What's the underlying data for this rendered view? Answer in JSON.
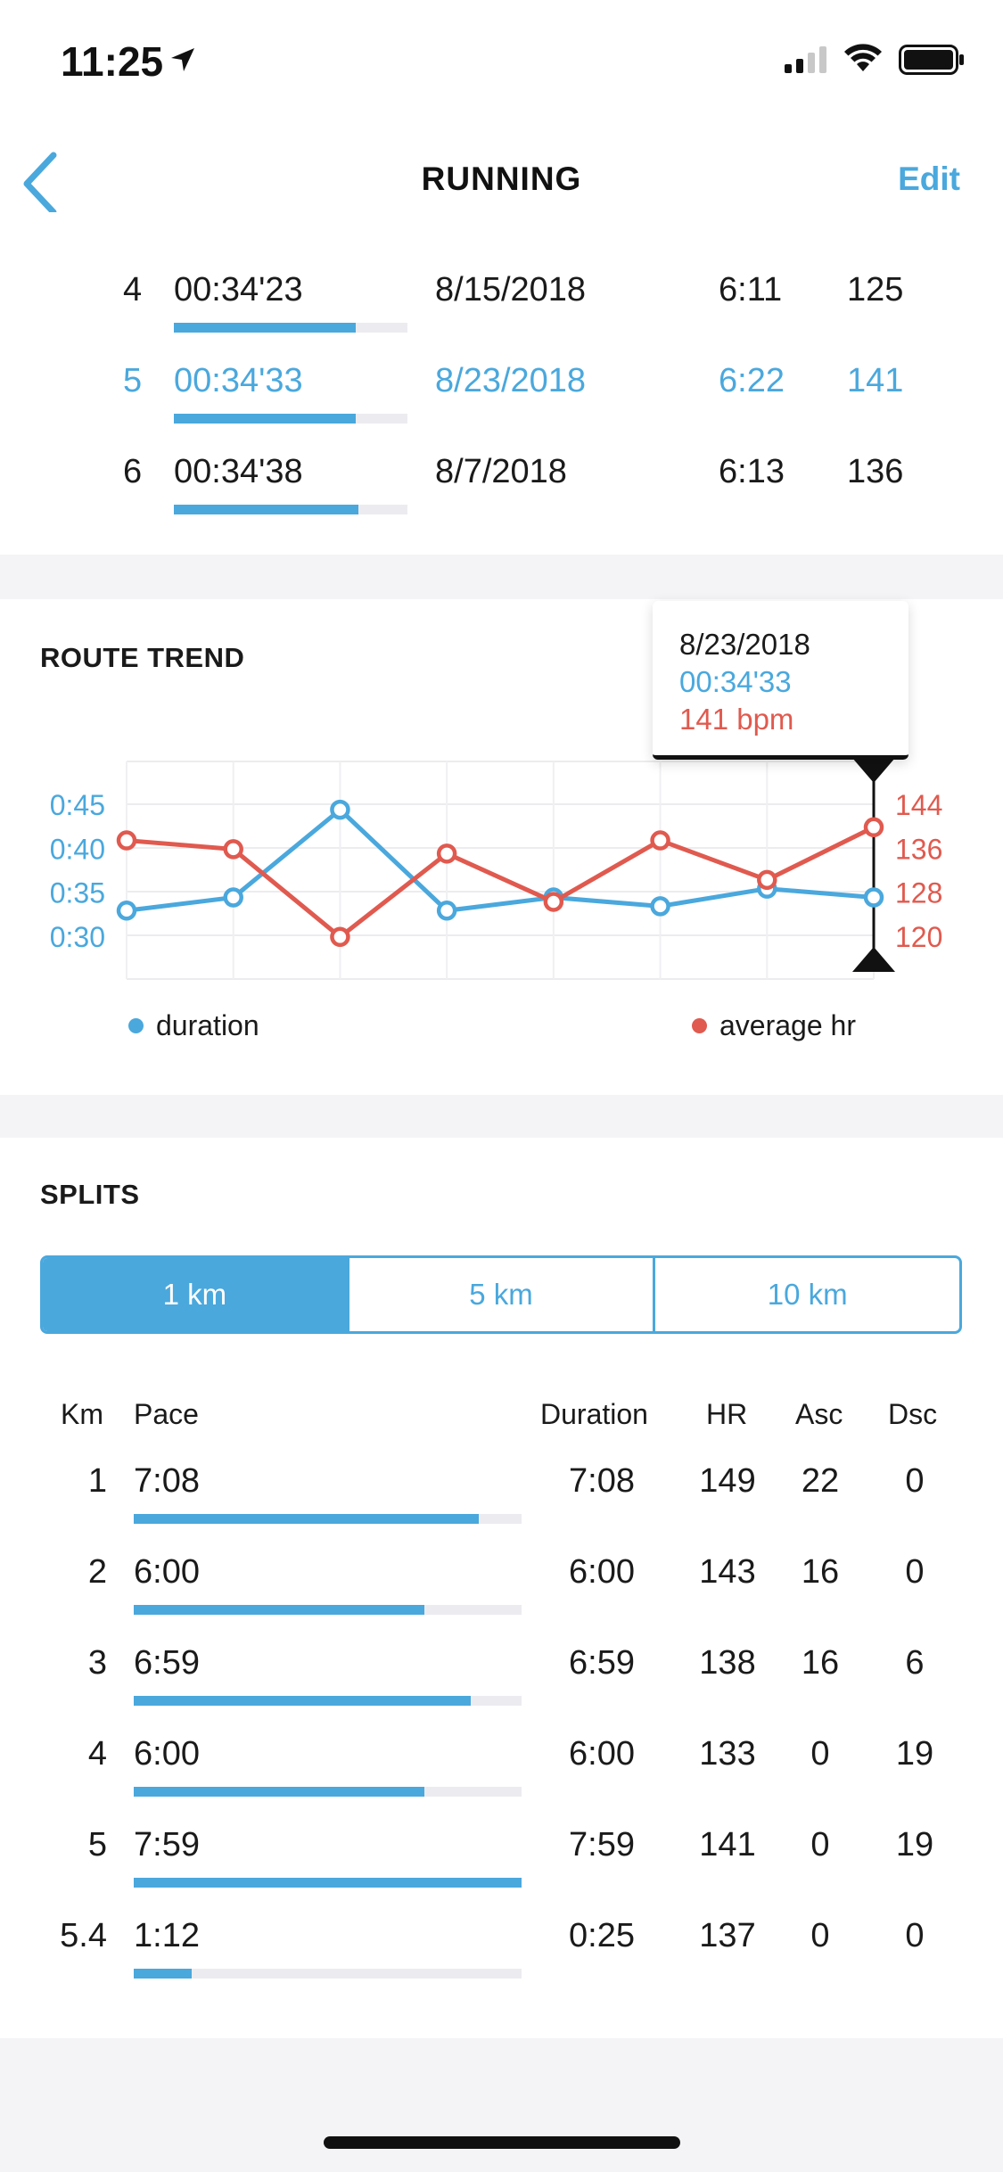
{
  "status": {
    "time": "11:25"
  },
  "nav": {
    "title": "RUNNING",
    "edit_label": "Edit"
  },
  "rankings": [
    {
      "rank": "4",
      "duration": "00:34'23",
      "fill": 0.78,
      "date": "8/15/2018",
      "pace": "6:11",
      "hr": "125",
      "highlight": false
    },
    {
      "rank": "5",
      "duration": "00:34'33",
      "fill": 0.78,
      "date": "8/23/2018",
      "pace": "6:22",
      "hr": "141",
      "highlight": true
    },
    {
      "rank": "6",
      "duration": "00:34'38",
      "fill": 0.79,
      "date": "8/7/2018",
      "pace": "6:13",
      "hr": "136",
      "highlight": false
    }
  ],
  "route_trend": {
    "title": "ROUTE TREND",
    "tooltip": {
      "date": "8/23/2018",
      "duration": "00:34'33",
      "hr": "141 bpm"
    },
    "legend": {
      "duration": "duration",
      "hr": "average hr"
    }
  },
  "chart_data": {
    "type": "line",
    "left_axis": {
      "ticks": [
        "0:45",
        "0:40",
        "0:35",
        "0:30"
      ],
      "values": [
        45,
        40,
        35,
        30
      ],
      "range": [
        25,
        50
      ]
    },
    "right_axis": {
      "ticks": [
        "144",
        "136",
        "128",
        "120"
      ],
      "values": [
        144,
        136,
        128,
        120
      ],
      "range": [
        112,
        152
      ]
    },
    "series": [
      {
        "name": "duration",
        "axis": "left",
        "color": "#4aa8dd",
        "values": [
          33,
          34.5,
          44.5,
          33,
          34.5,
          33.5,
          35.5,
          34.5
        ]
      },
      {
        "name": "average hr",
        "axis": "right",
        "color": "#e05a4f",
        "values": [
          137.6,
          136,
          120,
          135.2,
          126.4,
          137.6,
          130.4,
          140
        ]
      }
    ],
    "selected_index": 7
  },
  "splits": {
    "title": "SPLITS",
    "tabs": [
      {
        "label": "1 km",
        "active": true
      },
      {
        "label": "5 km",
        "active": false
      },
      {
        "label": "10 km",
        "active": false
      }
    ],
    "headers": {
      "km": "Km",
      "pace": "Pace",
      "duration": "Duration",
      "hr": "HR",
      "asc": "Asc",
      "dsc": "Dsc"
    },
    "rows": [
      {
        "km": "1",
        "pace": "7:08",
        "fill": 0.89,
        "duration": "7:08",
        "hr": "149",
        "asc": "22",
        "dsc": "0"
      },
      {
        "km": "2",
        "pace": "6:00",
        "fill": 0.75,
        "duration": "6:00",
        "hr": "143",
        "asc": "16",
        "dsc": "0"
      },
      {
        "km": "3",
        "pace": "6:59",
        "fill": 0.87,
        "duration": "6:59",
        "hr": "138",
        "asc": "16",
        "dsc": "6"
      },
      {
        "km": "4",
        "pace": "6:00",
        "fill": 0.75,
        "duration": "6:00",
        "hr": "133",
        "asc": "0",
        "dsc": "19"
      },
      {
        "km": "5",
        "pace": "7:59",
        "fill": 1.0,
        "duration": "7:59",
        "hr": "141",
        "asc": "0",
        "dsc": "19"
      },
      {
        "km": "5.4",
        "pace": "1:12",
        "fill": 0.15,
        "duration": "0:25",
        "hr": "137",
        "asc": "0",
        "dsc": "0"
      }
    ]
  },
  "colors": {
    "accent": "#4aa8dd",
    "hr": "#e05a4f"
  }
}
